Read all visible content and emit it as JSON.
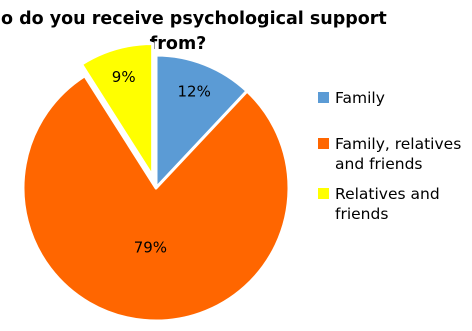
{
  "chart_data": {
    "type": "pie",
    "title": "Who do you receive psychological support from?",
    "title_lines": [
      "Who do you receive psychological support",
      "from?"
    ],
    "slices": [
      {
        "label": "Family",
        "legend_lines": [
          "Family"
        ],
        "value": 12,
        "value_label": "12%",
        "color": "#5b9bd5",
        "exploded": false
      },
      {
        "label": "Family, relatives and friends",
        "legend_lines": [
          "Family, relatives",
          "and friends"
        ],
        "value": 79,
        "value_label": "79%",
        "color": "#ff6600",
        "exploded": false
      },
      {
        "label": "Relatives and friends",
        "legend_lines": [
          "Relatives and",
          "friends"
        ],
        "value": 9,
        "value_label": "9%",
        "color": "#ffff00",
        "exploded": true
      }
    ],
    "start_angle": "12 o'clock",
    "direction": "clockwise",
    "legend_position": "right"
  }
}
